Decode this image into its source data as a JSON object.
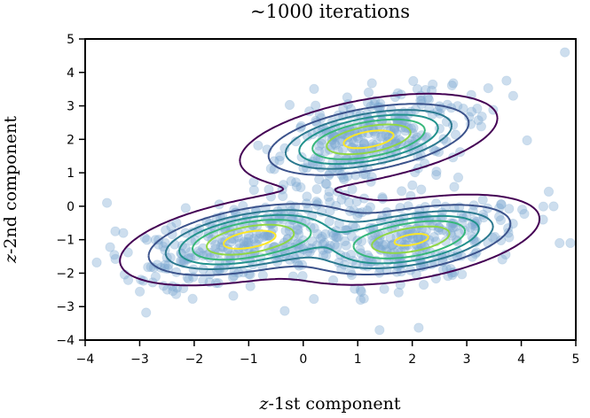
{
  "chart_data": {
    "type": "scatter",
    "title": "~1000 iterations",
    "xlabel": "z-1st component",
    "ylabel": "z-2nd component",
    "xlim": [
      -4,
      5
    ],
    "ylim": [
      -4,
      5
    ],
    "xticks": [
      -4,
      -3,
      -2,
      -1,
      0,
      1,
      2,
      3,
      4,
      5
    ],
    "yticks": [
      -4,
      -3,
      -2,
      -1,
      0,
      1,
      2,
      3,
      4,
      5
    ],
    "grid": false,
    "scatter_color": "#7ba7d1",
    "mixture_components": [
      {
        "mean": [
          1.2,
          2.0
        ],
        "weight": 0.34
      },
      {
        "mean": [
          -1.0,
          -1.0
        ],
        "weight": 0.34
      },
      {
        "mean": [
          2.0,
          -1.0
        ],
        "weight": 0.32
      }
    ],
    "contour_colors": [
      "#440154",
      "#3b528b",
      "#2a788e",
      "#21918c",
      "#35b779",
      "#8fd744",
      "#fde725"
    ],
    "outliers": [
      [
        4.8,
        4.6
      ],
      [
        -3.6,
        0.1
      ],
      [
        4.4,
        -0.4
      ],
      [
        4.9,
        -1.1
      ],
      [
        -3.3,
        -0.8
      ],
      [
        1.4,
        -3.7
      ]
    ]
  }
}
